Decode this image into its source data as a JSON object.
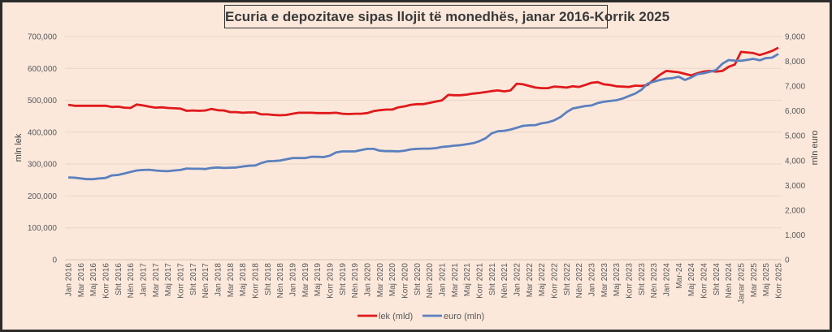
{
  "chart_data": {
    "type": "line",
    "title": "Ecuria e depozitave sipas llojit të monedhës, janar 2016-Korrik 2025",
    "ylabel": "mln lek",
    "y2label": "mln euro",
    "ylim": [
      0,
      700000
    ],
    "y2lim": [
      0,
      9000
    ],
    "yticks": [
      "0",
      "100,000",
      "200,000",
      "300,000",
      "400,000",
      "500,000",
      "600,000",
      "700,000"
    ],
    "y2ticks": [
      "0",
      "1,000",
      "2,000",
      "3,000",
      "4,000",
      "5,000",
      "6,000",
      "7,000",
      "8,000",
      "9,000"
    ],
    "grid": true,
    "legend_position": "bottom",
    "x_start": "Jan 2016",
    "x_end": "Korr 2025",
    "xtick_labels": [
      "Jan 2016",
      "Mar 2016",
      "Maj 2016",
      "Korr 2016",
      "Sht 2016",
      "Nën 2016",
      "Jan 2017",
      "Mar 2017",
      "Maj 2017",
      "Korr 2017",
      "Sht 2017",
      "Nën 2017",
      "Jan 2018",
      "Mar 2018",
      "Maj 2018",
      "Korr 2018",
      "Sht 2018",
      "Nën 2018",
      "Jan 2019",
      "Mar 2019",
      "Maj 2019",
      "Korr 2019",
      "Sht 2019",
      "Nën 2019",
      "Jan 2020",
      "Mar 2020",
      "Maj 2020",
      "Korr 2020",
      "Sht 2020",
      "Nën 2020",
      "Jan 2021",
      "Mar 2021",
      "Maj 2021",
      "Korr 2021",
      "Sht 2021",
      "Nën 2021",
      "Jan 2022",
      "Mar 2022",
      "Maj 2022",
      "Korr 2022",
      "Sht 2022",
      "Nën 2022",
      "Jan 2023",
      "Mar 2023",
      "Maj 2023",
      "Korr 2023",
      "Sht 2023",
      "Nën 2023",
      "Jan 2024",
      "Mar-24",
      "Maj 2024",
      "Korr 2024",
      "Sht 2024",
      "Nën 2024",
      "Janar 2025",
      "Mar 2025",
      "Maj 2025",
      "Korr 2025"
    ],
    "series": [
      {
        "name": "lek (mld)",
        "axis": "left",
        "color": "#e0191b",
        "values": [
          486000,
          483000,
          483000,
          483000,
          483000,
          483000,
          483000,
          479000,
          480000,
          477000,
          476000,
          487000,
          484000,
          480000,
          477000,
          478000,
          476000,
          475000,
          474000,
          467000,
          468000,
          467000,
          468000,
          473000,
          469000,
          468000,
          463000,
          463000,
          461000,
          462000,
          462000,
          456000,
          456000,
          454000,
          453000,
          454000,
          458000,
          461000,
          461000,
          461000,
          460000,
          460000,
          460000,
          461000,
          458000,
          457000,
          458000,
          458000,
          460000,
          466000,
          469000,
          471000,
          471000,
          478000,
          481000,
          486000,
          488000,
          488000,
          492000,
          496000,
          500000,
          517000,
          516000,
          516000,
          518000,
          521000,
          523000,
          526000,
          529000,
          531000,
          528000,
          531000,
          552000,
          550000,
          545000,
          540000,
          538000,
          538000,
          543000,
          542000,
          540000,
          544000,
          542000,
          548000,
          555000,
          557000,
          550000,
          548000,
          544000,
          543000,
          542000,
          546000,
          545000,
          548000,
          565000,
          580000,
          592000,
          590000,
          588000,
          583000,
          578000,
          585000,
          590000,
          592000,
          590000,
          592000,
          605000,
          612000,
          652000,
          650000,
          648000,
          642000,
          648000,
          655000,
          665000
        ]
      },
      {
        "name": "euro (mln)",
        "axis": "right",
        "color": "#5b80be",
        "values": [
          3320,
          3310,
          3280,
          3250,
          3250,
          3280,
          3300,
          3400,
          3420,
          3480,
          3540,
          3600,
          3620,
          3630,
          3600,
          3580,
          3570,
          3600,
          3620,
          3680,
          3670,
          3670,
          3660,
          3700,
          3720,
          3700,
          3710,
          3720,
          3760,
          3790,
          3800,
          3900,
          3970,
          3980,
          4000,
          4050,
          4100,
          4100,
          4100,
          4150,
          4150,
          4140,
          4200,
          4330,
          4370,
          4370,
          4370,
          4420,
          4470,
          4470,
          4400,
          4380,
          4380,
          4370,
          4400,
          4450,
          4470,
          4480,
          4480,
          4500,
          4550,
          4570,
          4600,
          4620,
          4660,
          4700,
          4780,
          4900,
          5100,
          5180,
          5200,
          5250,
          5320,
          5400,
          5420,
          5430,
          5500,
          5540,
          5620,
          5750,
          5950,
          6100,
          6150,
          6200,
          6220,
          6320,
          6370,
          6400,
          6430,
          6500,
          6600,
          6700,
          6850,
          7100,
          7180,
          7250,
          7300,
          7320,
          7380,
          7250,
          7350,
          7480,
          7520,
          7580,
          7650,
          7900,
          8050,
          8030,
          8020,
          8060,
          8100,
          8040,
          8130,
          8150,
          8300
        ]
      }
    ]
  }
}
